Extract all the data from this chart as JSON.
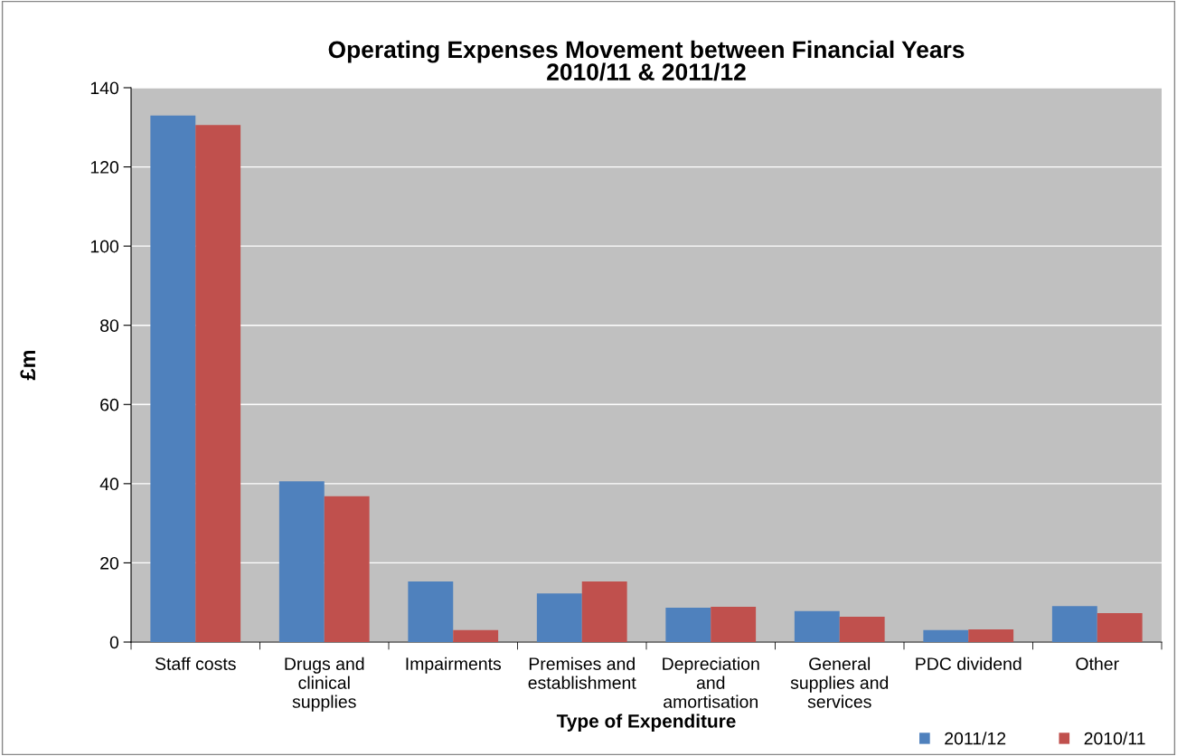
{
  "chart_data": {
    "type": "bar",
    "title": "Operating Expenses Movement between Financial Years\n2010/11 & 2011/12",
    "xlabel": "Type of Expenditure",
    "ylabel": "£m",
    "categories": [
      "Staff costs",
      "Drugs and\nclinical\nsupplies",
      "Impairments",
      "Premises and\nestablishment",
      "Depreciation\nand\namortisation",
      "General\nsupplies and\nservices",
      "PDC dividend",
      "Other"
    ],
    "series": [
      {
        "name": "2011/12",
        "color": "#4f81bd",
        "values": [
          133,
          40.6,
          15.3,
          12.3,
          8.7,
          7.8,
          3.0,
          9.1
        ]
      },
      {
        "name": "2010/11",
        "color": "#c0504d",
        "values": [
          130.6,
          36.8,
          3.0,
          15.3,
          8.9,
          6.4,
          3.2,
          7.3
        ]
      }
    ],
    "ylim": [
      0,
      140
    ],
    "yticks": [
      0,
      20,
      40,
      60,
      80,
      100,
      120,
      140
    ],
    "grid": "y",
    "legend": "bottom right"
  }
}
